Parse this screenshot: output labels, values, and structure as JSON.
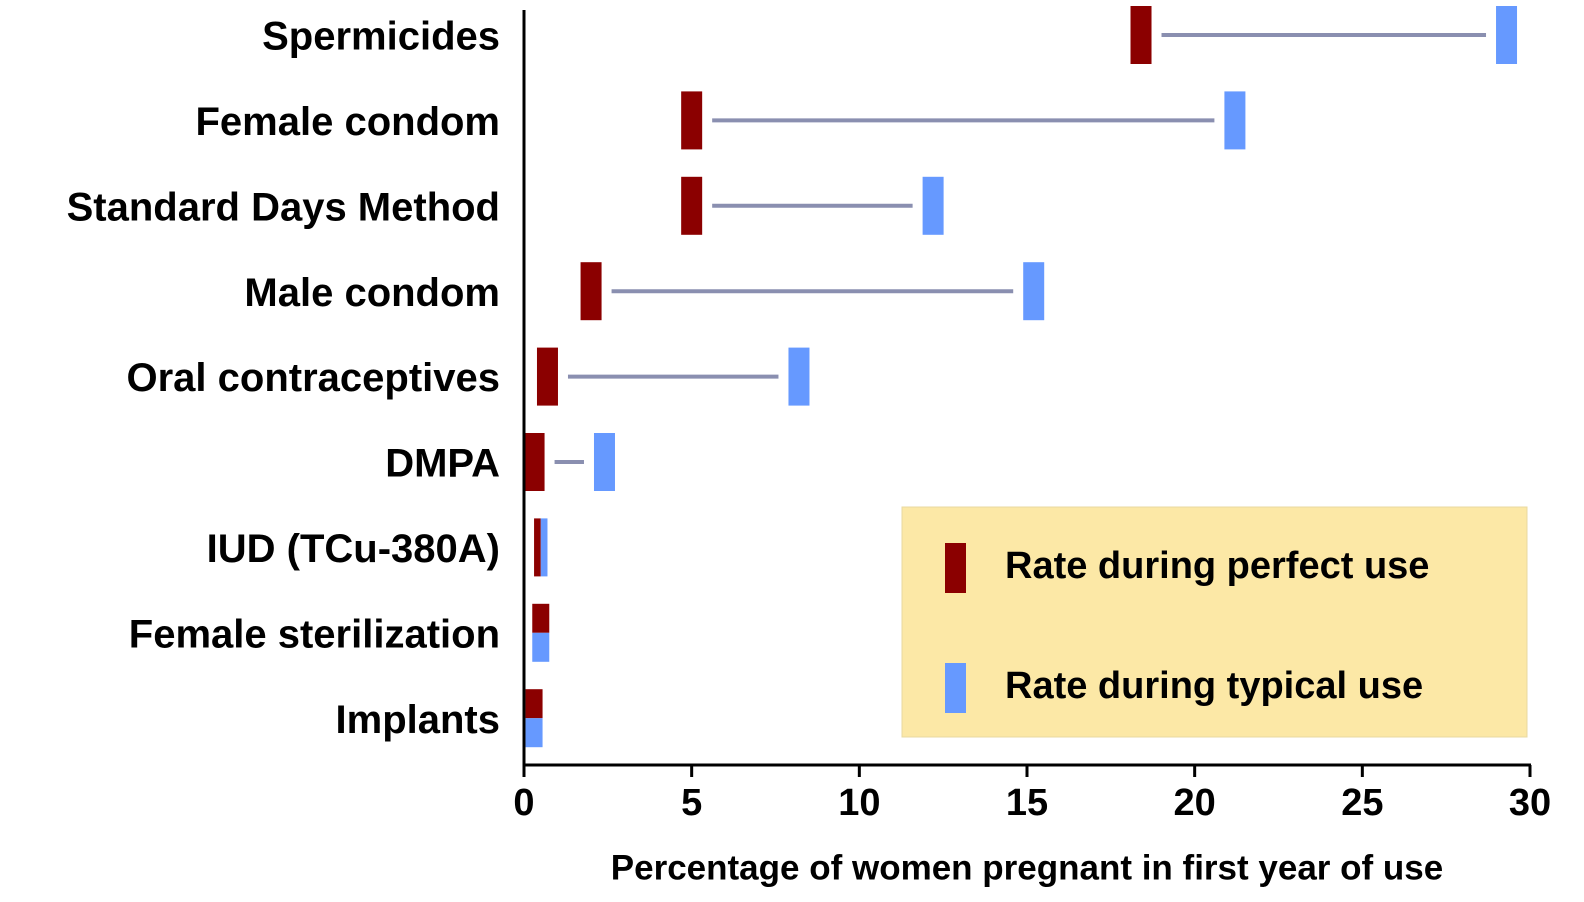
{
  "chart_data": {
    "type": "dumbbell",
    "xlabel": "Percentage of women pregnant in first year of use",
    "categories": [
      "Spermicides",
      "Female condom",
      "Standard Days Method",
      "Male condom",
      "Oral contraceptives",
      "DMPA",
      "IUD (TCu-380A)",
      "Female sterilization",
      "Implants"
    ],
    "series": [
      {
        "name": "Rate during perfect use",
        "color": "#8b0000",
        "values": [
          18.4,
          5,
          5,
          2,
          0.7,
          0.3,
          0.4,
          0.5,
          0.3
        ]
      },
      {
        "name": "Rate during typical use",
        "color": "#6699ff",
        "values": [
          29.3,
          21.2,
          12.2,
          15.2,
          8.2,
          2.4,
          0.6,
          0.5,
          0.3
        ]
      }
    ],
    "line_color": "#8a8fb0",
    "xlim": [
      0,
      30
    ],
    "xticks": [
      0,
      5,
      10,
      15,
      20,
      25,
      30
    ],
    "legend": "lower right",
    "legend_color": "#fce8a6"
  }
}
